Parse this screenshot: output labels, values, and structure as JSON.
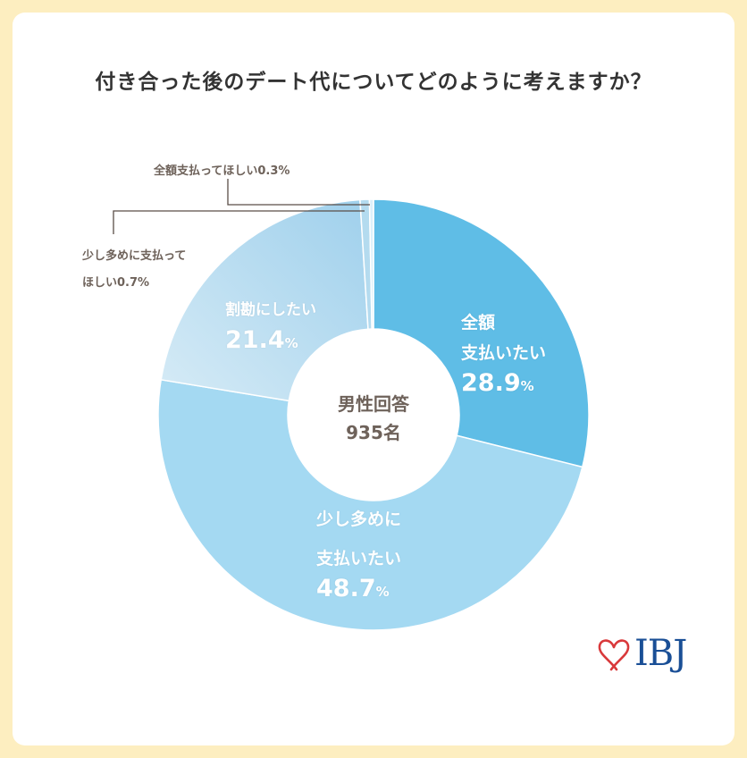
{
  "title": "付き合った後のデート代についてどのように考えますか？",
  "center_label": {
    "line1": "男性回答",
    "line2": "935名"
  },
  "chart_data": {
    "type": "pie",
    "donut": true,
    "title": "付き合った後のデート代についてどのように考えますか？",
    "categories": [
      "全額支払いたい",
      "少し多めに支払いたい",
      "割勘にしたい",
      "少し多めに支払ってほしい",
      "全額支払ってほしい"
    ],
    "values": [
      28.9,
      48.7,
      21.4,
      0.7,
      0.3
    ],
    "unit": "%",
    "colors": [
      "#5fbde6",
      "#a4d9f2",
      "#c3e1f1",
      "#b4dbef",
      "#dcf0fa"
    ],
    "start": "top",
    "direction": "clockwise"
  },
  "labels": {
    "s0": {
      "line1": "全額",
      "line2": "支払いたい",
      "value": "28.9",
      "unit": "%"
    },
    "s1": {
      "line1": "少し多めに",
      "line2": "支払いたい",
      "value": "48.7",
      "unit": "%"
    },
    "s2": {
      "line1": "割勘にしたい",
      "value": "21.4",
      "unit": "%"
    },
    "s3": {
      "line1": "少し多めに支払って",
      "line2": "ほしい0.7%"
    },
    "s4": {
      "line1": "全額支払ってほしい0.3%"
    }
  },
  "logo": {
    "text": "IBJ",
    "color": "#1a4f96",
    "heart_color": "#d9393b"
  }
}
